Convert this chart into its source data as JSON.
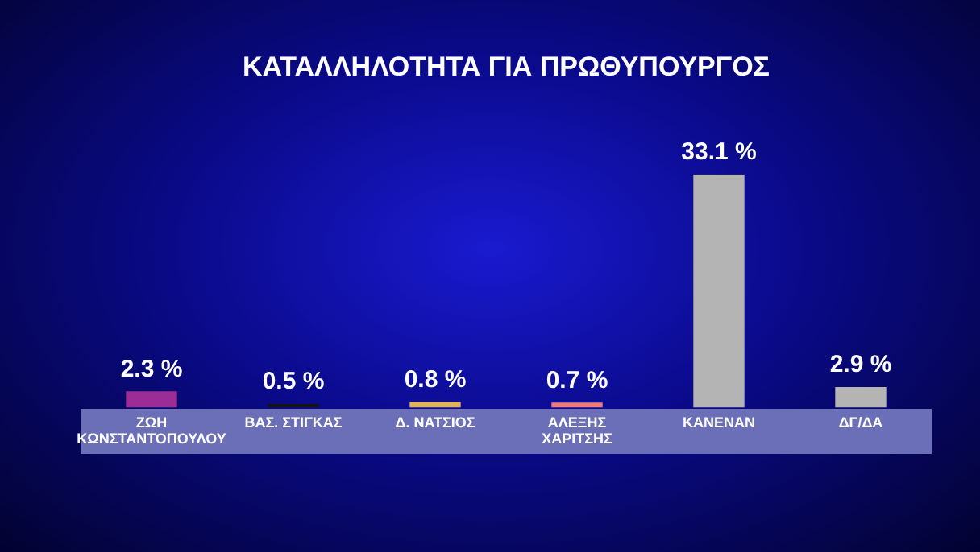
{
  "chart_data": {
    "type": "bar",
    "title": "ΚΑΤΑΛΛΗΛΟΤΗΤΑ ΓΙΑ ΠΡΩΘΥΠΟΥΡΓΟΣ",
    "categories": [
      "ΖΩΗ ΚΩΝΣΤΑΝΤΟΠΟΥΛΟΥ",
      "ΒΑΣ. ΣΤΙΓΚΑΣ",
      "Δ. ΝΑΤΣΙΟΣ",
      "ΑΛΕΞΗΣ ΧΑΡΙΤΣΗΣ",
      "ΚΑΝΕΝΑΝ",
      "ΔΓ/ΔΑ"
    ],
    "values": [
      2.3,
      0.5,
      0.8,
      0.7,
      33.1,
      2.9
    ],
    "value_labels": [
      "2.3 %",
      "0.5 %",
      "0.8 %",
      "0.7 %",
      "33.1 %",
      "2.9 %"
    ],
    "colors": [
      "#9a2e96",
      "#141414",
      "#e2b45a",
      "#f07a78",
      "#b4b4b4",
      "#b4b4b4"
    ],
    "grid": false,
    "legend": false
  }
}
